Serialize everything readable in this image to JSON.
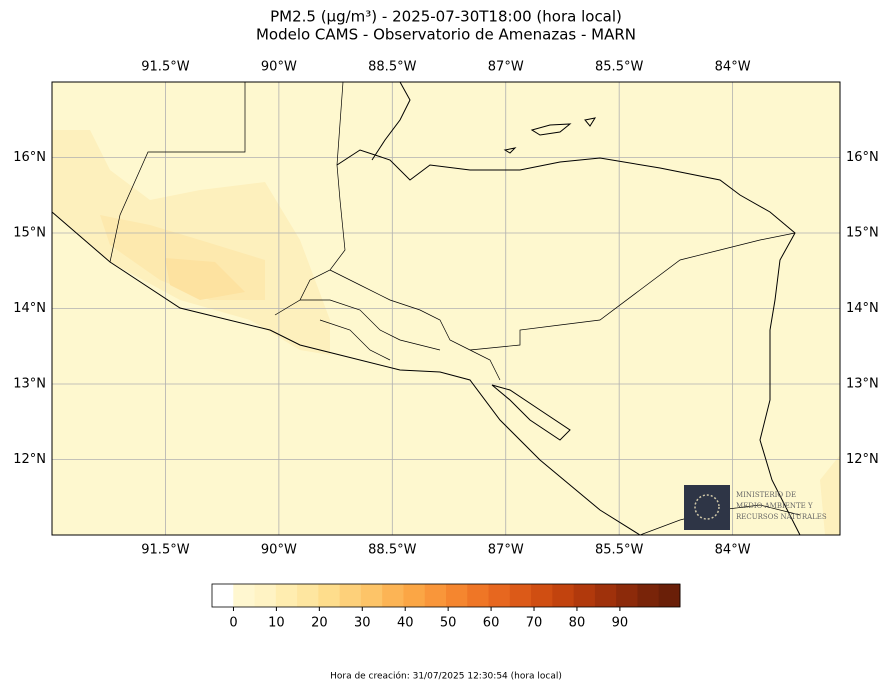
{
  "header": {
    "title": "PM2.5 (µg/m³) - 2025-07-30T18:00 (hora local)",
    "subtitle": "Modelo CAMS - Observatorio de Amenazas - MARN"
  },
  "map": {
    "background": "#fef8cf",
    "lonlim": [
      -93.0,
      -82.58
    ],
    "latlim": [
      11.0,
      17.0
    ],
    "lonticks": [
      {
        "value": -91.5,
        "label": "91.5°W"
      },
      {
        "value": -90,
        "label": "90°W"
      },
      {
        "value": -88.5,
        "label": "88.5°W"
      },
      {
        "value": -87,
        "label": "87°W"
      },
      {
        "value": -85.5,
        "label": "85.5°W"
      },
      {
        "value": -84,
        "label": "84°W"
      }
    ],
    "latticks": [
      {
        "value": 16,
        "label": "16°N"
      },
      {
        "value": 15,
        "label": "15°N"
      },
      {
        "value": 14,
        "label": "14°N"
      },
      {
        "value": 13,
        "label": "13°N"
      },
      {
        "value": 12,
        "label": "12°N"
      }
    ]
  },
  "colorbar": {
    "lim": [
      -5,
      104
    ],
    "ticks": [
      0,
      10,
      20,
      30,
      40,
      50,
      60,
      70,
      80,
      90
    ],
    "colors": [
      "#ffffff",
      "#fff7d0",
      "#fff3c4",
      "#ffedb0",
      "#fee6a0",
      "#fedd8c",
      "#fdd07a",
      "#fdc468",
      "#fcb455",
      "#fba645",
      "#f9963a",
      "#f5862f",
      "#ef7626",
      "#e7671f",
      "#dc5a18",
      "#d04e12",
      "#c2430e",
      "#b1390c",
      "#9f310b",
      "#8c2a0a",
      "#792409",
      "#6a1f08"
    ]
  },
  "logo": {
    "lines": [
      "MINISTERIO DE",
      "MEDIO AMBIENTE Y",
      "RECURSOS NATURALES"
    ]
  },
  "footer": {
    "text": "Hora de creación: 31/07/2025 12:30:54 (hora local)"
  }
}
